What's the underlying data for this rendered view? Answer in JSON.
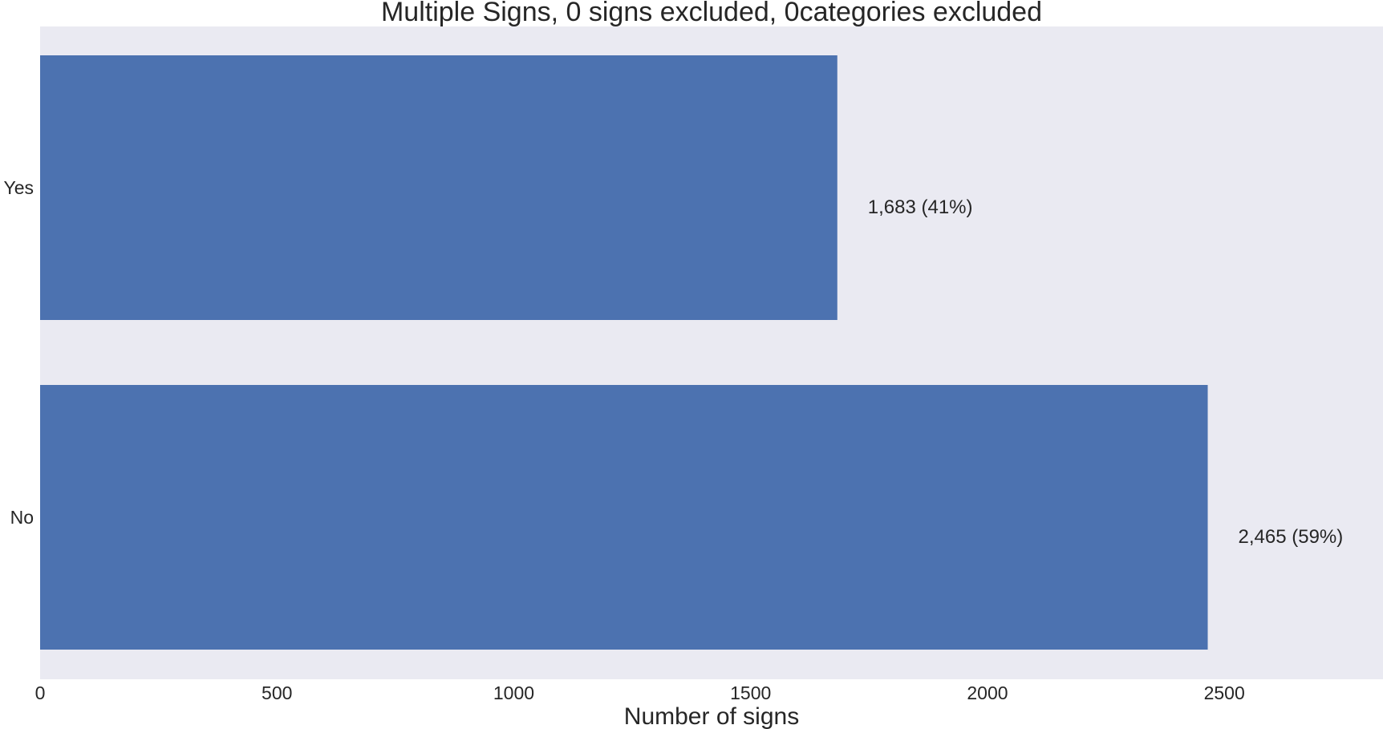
{
  "chart_data": {
    "type": "bar",
    "orientation": "horizontal",
    "title": "Multiple Signs, 0 signs excluded, 0categories excluded",
    "xlabel": "Number of signs",
    "ylabel": "",
    "categories": [
      "Yes",
      "No"
    ],
    "values": [
      1683,
      2465
    ],
    "data_labels": [
      "1,683 (41%)",
      "2,465 (59%)"
    ],
    "xlim": [
      0,
      2835
    ],
    "xticks": [
      0,
      500,
      1000,
      1500,
      2000,
      2500
    ],
    "xtick_labels": [
      "0",
      "500",
      "1000",
      "1500",
      "2000",
      "2500"
    ],
    "grid": false,
    "legend": "none",
    "colors": {
      "bar": "#4C72B0",
      "plot_background": "#EAEAF2",
      "text": "#262626"
    }
  }
}
